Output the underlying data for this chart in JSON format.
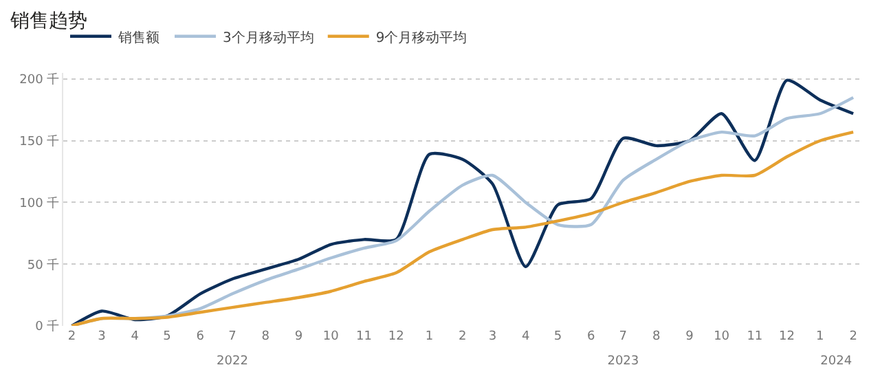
{
  "chart_data": {
    "type": "line",
    "title": "销售趋势",
    "x": [
      "2022-02",
      "2022-03",
      "2022-04",
      "2022-05",
      "2022-06",
      "2022-07",
      "2022-08",
      "2022-09",
      "2022-10",
      "2022-11",
      "2022-12",
      "2023-01",
      "2023-02",
      "2023-03",
      "2023-04",
      "2023-05",
      "2023-06",
      "2023-07",
      "2023-08",
      "2023-09",
      "2023-10",
      "2023-11",
      "2023-12",
      "2024-01",
      "2024-02"
    ],
    "series": [
      {
        "name": "销售额",
        "color": "#0d2f5a",
        "values": [
          0,
          12,
          5,
          8,
          26,
          38,
          46,
          54,
          66,
          70,
          70,
          139,
          135,
          115,
          48,
          98,
          103,
          152,
          146,
          150,
          172,
          134,
          199,
          183,
          172
        ]
      },
      {
        "name": "3个月移动平均",
        "color": "#a9c1d9",
        "values": [
          0,
          6,
          6,
          8,
          14,
          26,
          37,
          46,
          55,
          63,
          69,
          93,
          114,
          122,
          100,
          82,
          82,
          118,
          135,
          150,
          157,
          154,
          168,
          172,
          185
        ]
      },
      {
        "name": "9个月移动平均",
        "color": "#e5a030",
        "values": [
          0,
          6,
          6,
          7,
          11,
          15,
          19,
          23,
          28,
          36,
          43,
          60,
          70,
          78,
          80,
          85,
          91,
          100,
          108,
          117,
          122,
          122,
          137,
          150,
          157
        ]
      }
    ],
    "xlim": [
      "2022-01-24",
      "2024-02-08"
    ],
    "xticks": [
      {
        "value": "2022-02",
        "label": "2"
      },
      {
        "value": "2022-03",
        "label": "3"
      },
      {
        "value": "2022-04",
        "label": "4"
      },
      {
        "value": "2022-05",
        "label": "5"
      },
      {
        "value": "2022-06",
        "label": "6"
      },
      {
        "value": "2022-07",
        "label": "7"
      },
      {
        "value": "2022-08",
        "label": "8"
      },
      {
        "value": "2022-09",
        "label": "9"
      },
      {
        "value": "2022-10",
        "label": "10"
      },
      {
        "value": "2022-11",
        "label": "11"
      },
      {
        "value": "2022-12",
        "label": "12"
      },
      {
        "value": "2023-01",
        "label": "1"
      },
      {
        "value": "2023-02",
        "label": "2"
      },
      {
        "value": "2023-03",
        "label": "3"
      },
      {
        "value": "2023-04",
        "label": "4"
      },
      {
        "value": "2023-05",
        "label": "5"
      },
      {
        "value": "2023-06",
        "label": "6"
      },
      {
        "value": "2023-07",
        "label": "7"
      },
      {
        "value": "2023-08",
        "label": "8"
      },
      {
        "value": "2023-09",
        "label": "9"
      },
      {
        "value": "2023-10",
        "label": "10"
      },
      {
        "value": "2023-11",
        "label": "11"
      },
      {
        "value": "2023-12",
        "label": "12"
      },
      {
        "value": "2024-01",
        "label": "1"
      },
      {
        "value": "2024-02",
        "label": "2"
      }
    ],
    "ylim": [
      0,
      205
    ],
    "yticks": [
      {
        "value": 0,
        "label": "0 千"
      },
      {
        "value": 50,
        "label": "50 千"
      },
      {
        "value": 100,
        "label": "100 千"
      },
      {
        "value": 150,
        "label": "150 千"
      },
      {
        "value": 200,
        "label": "200 千"
      }
    ],
    "x2lim": [
      "2022-01-24",
      "2024-02-08"
    ],
    "x2ticks": [
      {
        "value": "2022-07",
        "label": "2022"
      },
      {
        "value": "2023-07",
        "label": "2023"
      },
      {
        "value": "2024-01-16",
        "label": "2024"
      }
    ],
    "grid": "y",
    "legend": "top left",
    "marker": "none",
    "line_style": "solid"
  }
}
